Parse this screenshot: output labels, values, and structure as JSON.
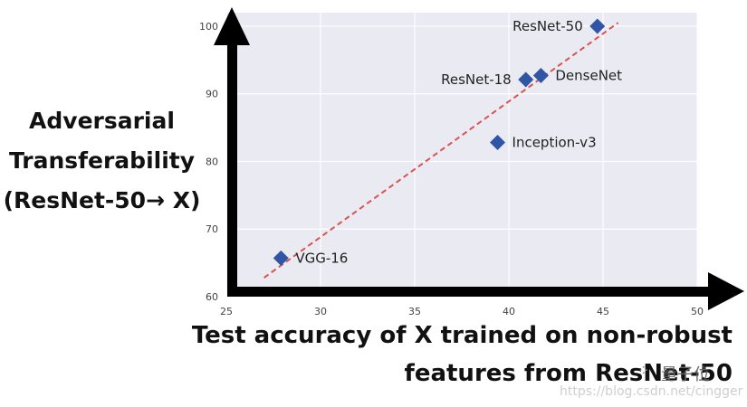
{
  "chart_data": {
    "type": "scatter",
    "ylabel_lines": [
      "Adversarial",
      "Transferability",
      "(ResNet-50→ X)"
    ],
    "xlabel_lines": [
      "Test accuracy of X trained on non-robust",
      "features from ResNet-50"
    ],
    "xlim": [
      25,
      50
    ],
    "ylim": [
      60,
      102
    ],
    "xticks": [
      "25",
      "30",
      "35",
      "40",
      "45",
      "50"
    ],
    "yticks": [
      "60",
      "70",
      "80",
      "90",
      "100"
    ],
    "grid": true,
    "points": [
      {
        "label": "VGG-16",
        "x": 27.9,
        "y": 65.7,
        "label_side": "right"
      },
      {
        "label": "Inception-v3",
        "x": 39.4,
        "y": 82.8,
        "label_side": "right"
      },
      {
        "label": "ResNet-18",
        "x": 40.9,
        "y": 92.1,
        "label_side": "left"
      },
      {
        "label": "DenseNet",
        "x": 41.7,
        "y": 92.7,
        "label_side": "right"
      },
      {
        "label": "ResNet-50",
        "x": 44.7,
        "y": 100.0,
        "label_side": "left"
      }
    ],
    "trendline": {
      "x": [
        27.0,
        45.8
      ],
      "y": [
        62.8,
        100.5
      ],
      "color": "#d9534f",
      "style": "dashed"
    },
    "marker_color": "#2f55a4",
    "background_color": "#eaeaf2"
  },
  "watermark": {
    "logo": "⁘",
    "text": "量子位",
    "url": "https://blog.csdn.net/cingger"
  }
}
